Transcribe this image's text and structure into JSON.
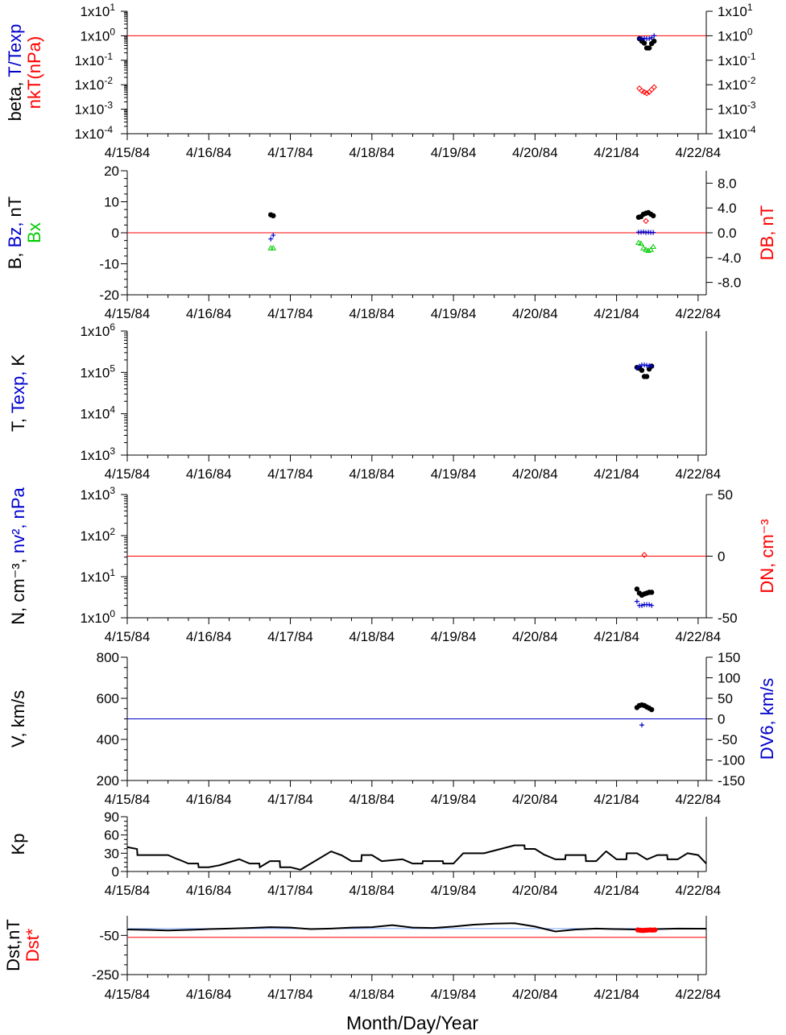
{
  "colors": {
    "black": "#000000",
    "red": "#ff0000",
    "blue": "#0000cc",
    "green": "#00cc00",
    "lightblue": "#7fa7ff"
  },
  "x_label": "Month/Day/Year",
  "x_ticks": [
    "4/15/84",
    "4/16/84",
    "4/17/84",
    "4/18/84",
    "4/19/84",
    "4/20/84",
    "4/21/84",
    "4/22/84"
  ],
  "chart_data": [
    {
      "type": "scatter",
      "left_label": [
        {
          "text": "beta, ",
          "color": "black"
        },
        {
          "text": "T/Texp",
          "color": "blue"
        },
        {
          "text": "nkT(nPa)",
          "color": "red"
        }
      ],
      "y_scale": "log",
      "y_ticks": [
        {
          "base": "1x10",
          "exp": "1"
        },
        {
          "base": "1x10",
          "exp": "0"
        },
        {
          "base": "1x10",
          "exp": "-1"
        },
        {
          "base": "1x10",
          "exp": "-2"
        },
        {
          "base": "1x10",
          "exp": "-3"
        },
        {
          "base": "1x10",
          "exp": "-4"
        }
      ],
      "ylim": [
        -4,
        1
      ],
      "ref_line": {
        "value": 0,
        "color": "red"
      },
      "series": [
        {
          "color": "black",
          "marker": "dot",
          "x": [
            6.28,
            6.31,
            6.34,
            6.37,
            6.4,
            6.43,
            6.46
          ],
          "y": [
            -0.12,
            -0.22,
            -0.3,
            -0.5,
            -0.5,
            -0.32,
            -0.22
          ]
        },
        {
          "color": "blue",
          "marker": "plus",
          "x": [
            6.28,
            6.31,
            6.34,
            6.37,
            6.4,
            6.43,
            6.46
          ],
          "y": [
            -0.12,
            -0.12,
            -0.1,
            -0.12,
            -0.12,
            -0.08,
            0.0
          ]
        },
        {
          "color": "red",
          "marker": "diamond",
          "x": [
            6.28,
            6.31,
            6.34,
            6.37,
            6.4,
            6.43,
            6.46
          ],
          "y": [
            -2.15,
            -2.25,
            -2.3,
            -2.35,
            -2.3,
            -2.2,
            -2.1
          ]
        }
      ]
    },
    {
      "type": "scatter",
      "left_label": [
        {
          "text": "B, ",
          "color": "black"
        },
        {
          "text": "Bz, ",
          "color": "blue"
        },
        {
          "text": "nT",
          "color": "black"
        },
        {
          "text": "Bx",
          "color": "green"
        }
      ],
      "right_label": [
        {
          "text": "DB, nT",
          "color": "red"
        }
      ],
      "y_ticks": [
        "20",
        "10",
        "0",
        "-10",
        "-20"
      ],
      "ylim": [
        -20,
        20
      ],
      "y2_ticks": [
        "8.0",
        "4.0",
        "0.0",
        "-4.0",
        "-8.0"
      ],
      "y2lim": [
        -10,
        10
      ],
      "ref_line": {
        "value": 0,
        "color": "red"
      },
      "series": [
        {
          "color": "black",
          "marker": "dot",
          "x": [
            1.76,
            1.79,
            6.27,
            6.3,
            6.33,
            6.36,
            6.39,
            6.42,
            6.45
          ],
          "y": [
            5.8,
            5.5,
            5,
            5.2,
            6,
            6.3,
            6.5,
            6,
            5.5
          ]
        },
        {
          "color": "blue",
          "marker": "plus",
          "x": [
            1.76,
            1.79,
            6.27,
            6.3,
            6.33,
            6.36,
            6.39,
            6.42,
            6.45
          ],
          "y": [
            -2,
            -0.8,
            0.2,
            0.2,
            0.3,
            0.1,
            0.2,
            0.1,
            0.1
          ]
        },
        {
          "color": "green",
          "marker": "triangle",
          "x": [
            1.76,
            1.79,
            6.27,
            6.3,
            6.33,
            6.36,
            6.39,
            6.42,
            6.45
          ],
          "y": [
            -5,
            -5,
            -3.2,
            -3.5,
            -5,
            -5.5,
            -5.8,
            -5.5,
            -4.5
          ]
        },
        {
          "color": "red",
          "marker": "diamond",
          "axis": "y2",
          "x": [
            6.36
          ],
          "y": [
            1.9
          ]
        }
      ]
    },
    {
      "type": "scatter",
      "left_label": [
        {
          "text": "T, ",
          "color": "black"
        },
        {
          "text": "Texp, ",
          "color": "blue"
        },
        {
          "text": "K",
          "color": "black"
        }
      ],
      "y_scale": "log",
      "y_ticks": [
        {
          "base": "1x10",
          "exp": "6"
        },
        {
          "base": "1x10",
          "exp": "5"
        },
        {
          "base": "1x10",
          "exp": "4"
        },
        {
          "base": "1x10",
          "exp": "3"
        }
      ],
      "ylim": [
        3,
        6
      ],
      "series": [
        {
          "color": "black",
          "marker": "dot",
          "x": [
            6.25,
            6.28,
            6.31,
            6.34,
            6.37,
            6.4,
            6.43
          ],
          "y": [
            5.12,
            5.1,
            5.05,
            4.9,
            4.9,
            5.08,
            5.15
          ]
        },
        {
          "color": "blue",
          "marker": "plus",
          "x": [
            6.25,
            6.28,
            6.31,
            6.34,
            6.37,
            6.4,
            6.43
          ],
          "y": [
            5.1,
            5.15,
            5.18,
            5.18,
            5.17,
            5.16,
            5.15
          ]
        }
      ]
    },
    {
      "type": "scatter",
      "left_label": [
        {
          "text": "N, cm⁻³, ",
          "color": "black"
        },
        {
          "text": "nv², nPa",
          "color": "blue"
        }
      ],
      "right_label": [
        {
          "text": "DN, cm⁻³",
          "color": "red"
        }
      ],
      "y_scale": "log",
      "y_ticks": [
        {
          "base": "1x10",
          "exp": "3"
        },
        {
          "base": "1x10",
          "exp": "2"
        },
        {
          "base": "1x10",
          "exp": "1"
        },
        {
          "base": "1x10",
          "exp": "0"
        }
      ],
      "ylim": [
        0,
        3
      ],
      "y2_ticks": [
        "50",
        "0",
        "-50"
      ],
      "y2lim": [
        -50,
        50
      ],
      "ref_line": {
        "value": 0,
        "axis": "y2",
        "color": "red"
      },
      "series": [
        {
          "color": "black",
          "marker": "dot",
          "x": [
            6.25,
            6.28,
            6.31,
            6.34,
            6.37,
            6.4,
            6.43
          ],
          "y": [
            0.7,
            0.6,
            0.55,
            0.58,
            0.6,
            0.62,
            0.62
          ]
        },
        {
          "color": "blue",
          "marker": "plus",
          "x": [
            6.25,
            6.28,
            6.31,
            6.34,
            6.37,
            6.4,
            6.43
          ],
          "y": [
            0.4,
            0.3,
            0.3,
            0.32,
            0.32,
            0.32,
            0.3
          ]
        },
        {
          "color": "red",
          "marker": "diamond",
          "axis": "y2",
          "x": [
            6.34
          ],
          "y": [
            1
          ]
        }
      ]
    },
    {
      "type": "scatter",
      "left_label": [
        {
          "text": "V, km/s",
          "color": "black"
        }
      ],
      "right_label": [
        {
          "text": "DV6, km/s",
          "color": "blue"
        }
      ],
      "y_ticks": [
        "800",
        "600",
        "400",
        "200"
      ],
      "ylim": [
        200,
        800
      ],
      "y2_ticks": [
        "150",
        "100",
        "50",
        "0",
        "-50",
        "-100",
        "-150"
      ],
      "y2lim": [
        -150,
        150
      ],
      "ref_line": {
        "value": 0,
        "axis": "y2",
        "color": "blue"
      },
      "series": [
        {
          "color": "black",
          "marker": "dot",
          "x": [
            6.25,
            6.28,
            6.31,
            6.34,
            6.37,
            6.4,
            6.43
          ],
          "y": [
            555,
            565,
            568,
            565,
            558,
            552,
            545
          ]
        },
        {
          "color": "blue",
          "marker": "plus",
          "axis": "y2",
          "x": [
            6.31
          ],
          "y": [
            -15
          ]
        }
      ]
    },
    {
      "type": "line",
      "left_label": [
        {
          "text": "Kp",
          "color": "black"
        }
      ],
      "y_ticks": [
        "90",
        "60",
        "30",
        "0"
      ],
      "ylim": [
        0,
        90
      ],
      "series": [
        {
          "color": "black",
          "x": [
            0,
            0.12,
            0.125,
            0.5,
            0.62,
            0.625,
            0.75,
            0.87,
            0.875,
            1.0,
            1.12,
            1.125,
            1.37,
            1.375,
            1.5,
            1.62,
            1.625,
            1.75,
            1.87,
            1.875,
            2.0,
            2.12,
            2.125,
            2.5,
            2.62,
            2.625,
            2.75,
            2.87,
            2.875,
            3.0,
            3.12,
            3.125,
            3.37,
            3.375,
            3.5,
            3.62,
            3.625,
            3.87,
            3.875,
            4.0,
            4.12,
            4.125,
            4.37,
            4.375,
            4.75,
            4.87,
            4.875,
            5.0,
            5.12,
            5.125,
            5.25,
            5.37,
            5.375,
            5.62,
            5.625,
            5.75,
            5.87,
            5.875,
            6.0,
            6.12,
            6.125,
            6.25,
            6.37,
            6.375,
            6.5,
            6.62,
            6.625,
            6.75,
            6.87,
            6.875,
            7.0,
            7.1
          ],
          "y": [
            40,
            37,
            27,
            27,
            20,
            20,
            13,
            13,
            7,
            7,
            10,
            10,
            20,
            20,
            13,
            13,
            7,
            17,
            17,
            7,
            7,
            3,
            3,
            33,
            27,
            27,
            17,
            17,
            27,
            27,
            17,
            17,
            20,
            20,
            13,
            13,
            17,
            17,
            13,
            13,
            30,
            30,
            30,
            30,
            43,
            43,
            37,
            37,
            27,
            27,
            20,
            20,
            27,
            27,
            17,
            17,
            33,
            33,
            20,
            20,
            30,
            30,
            20,
            20,
            27,
            27,
            20,
            20,
            30,
            30,
            27,
            13
          ]
        }
      ]
    },
    {
      "type": "line",
      "left_label": [
        {
          "text": "Dst,nT",
          "color": "black"
        },
        {
          "text": "Dst*",
          "color": "red"
        }
      ],
      "y_ticks": [
        "-50",
        "-250"
      ],
      "ylim": [
        -250,
        50
      ],
      "ref_lines": [
        {
          "value": -15,
          "color": "lightblue"
        },
        {
          "value": -60,
          "color": "red"
        }
      ],
      "series": [
        {
          "color": "black",
          "x": [
            0,
            0.25,
            0.5,
            0.75,
            1.0,
            1.25,
            1.5,
            1.75,
            2.0,
            2.25,
            2.5,
            2.75,
            3.0,
            3.25,
            3.5,
            3.75,
            4.0,
            4.25,
            4.5,
            4.75,
            5.0,
            5.25,
            5.5,
            5.75,
            6.0,
            6.25,
            6.5,
            6.75,
            7.0,
            7.1
          ],
          "y": [
            -20,
            -22,
            -25,
            -22,
            -18,
            -15,
            -12,
            -8,
            -10,
            -18,
            -15,
            -10,
            -8,
            2,
            -10,
            -12,
            -5,
            5,
            10,
            12,
            -5,
            -30,
            -20,
            -15,
            -18,
            -20,
            -18,
            -15,
            -16,
            -16
          ]
        },
        {
          "color": "red",
          "marker": "dot",
          "x": [
            6.26,
            6.29,
            6.32,
            6.35,
            6.38,
            6.41,
            6.44,
            6.47
          ],
          "y": [
            -22,
            -24,
            -25,
            -24,
            -23,
            -22,
            -23,
            -22
          ]
        }
      ]
    }
  ]
}
